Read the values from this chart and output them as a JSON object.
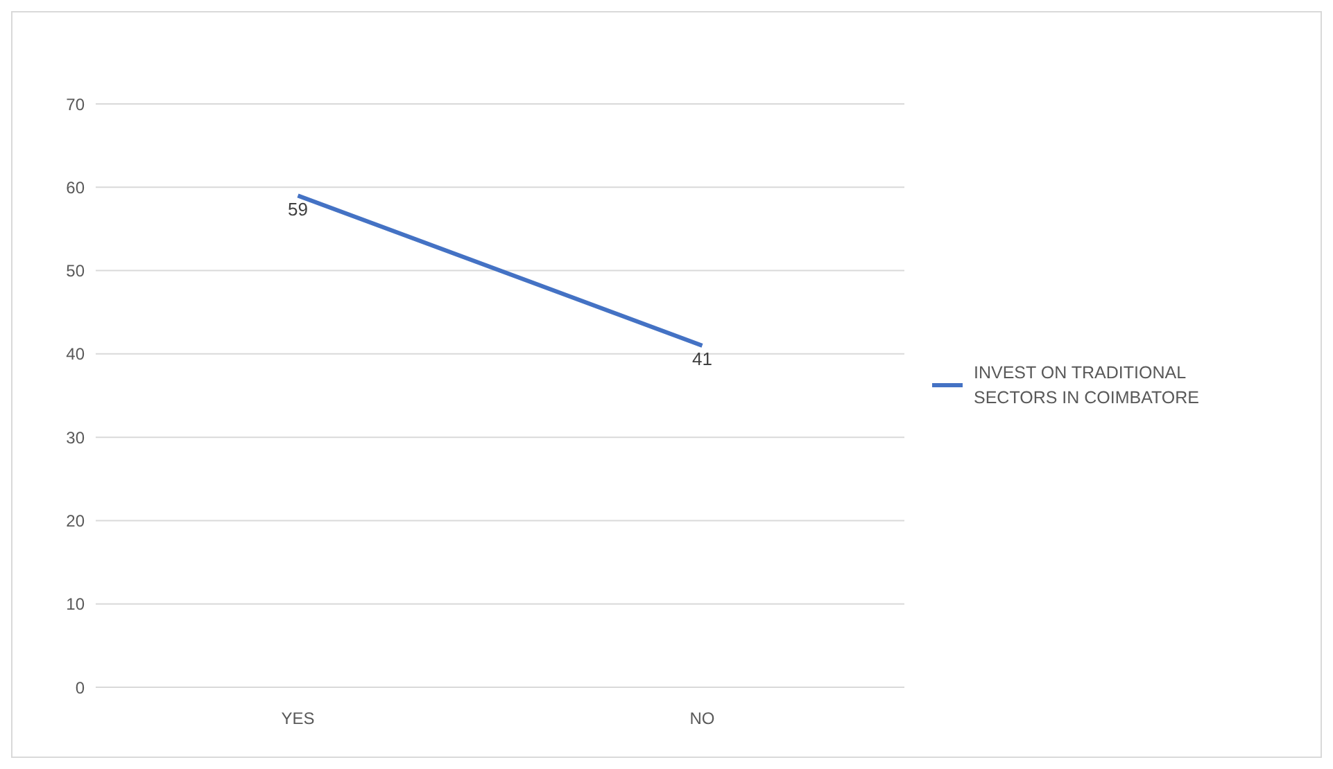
{
  "chart_data": {
    "type": "line",
    "categories": [
      "YES",
      "NO"
    ],
    "series": [
      {
        "name": "INVEST ON TRADITIONAL SECTORS IN COIMBATORE",
        "color": "#4472c4",
        "values": [
          59,
          41
        ]
      }
    ],
    "ylim": [
      0,
      70
    ],
    "yticks": [
      0,
      10,
      20,
      30,
      40,
      50,
      60,
      70
    ],
    "grid": "y",
    "legend": "right",
    "marker": "none",
    "data_labels": true
  }
}
